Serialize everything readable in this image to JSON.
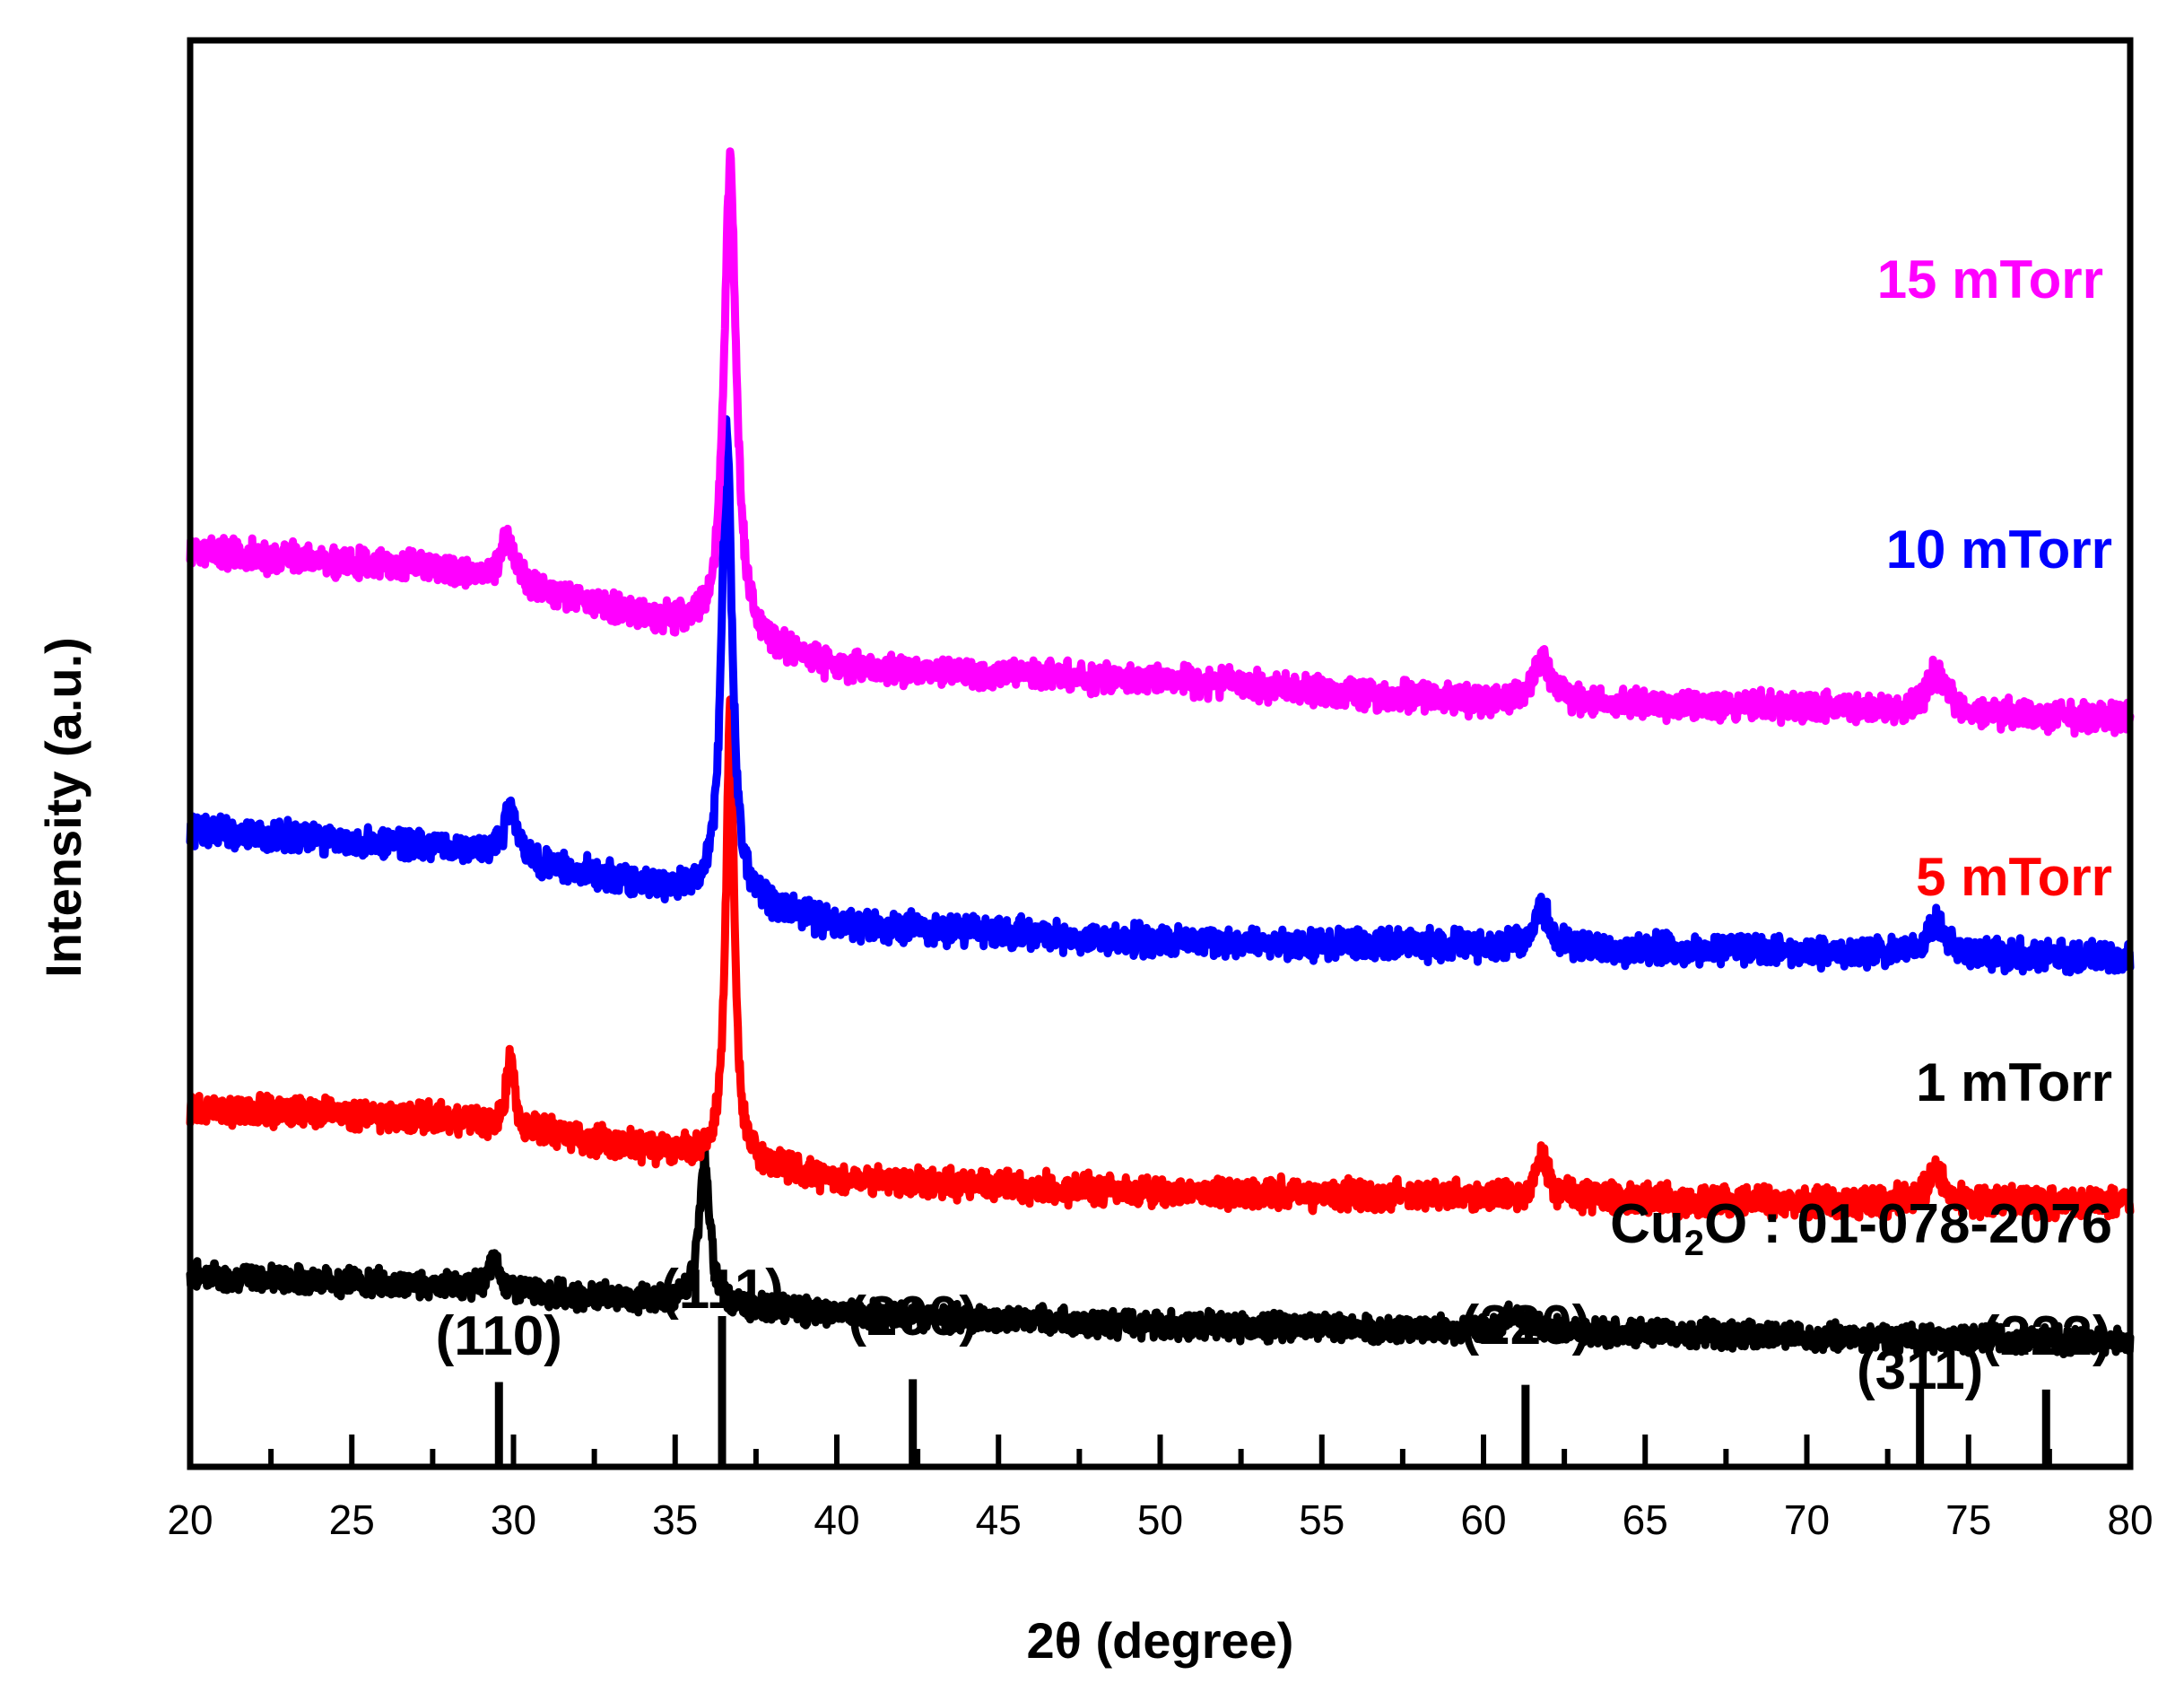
{
  "chart_data": {
    "type": "line",
    "title": "",
    "xlabel": "2θ (degree)",
    "ylabel": "Intensity (a.u.)",
    "xlim": [
      20,
      80
    ],
    "x_ticks": [
      20,
      25,
      30,
      35,
      40,
      45,
      50,
      55,
      60,
      65,
      70,
      75,
      80
    ],
    "y_ticks": [],
    "grid": false,
    "legend": "inline-right",
    "series": [
      {
        "name": "15 mTorr",
        "color": "#ff00ff",
        "baseline": [
          [
            20,
            17.5
          ],
          [
            28,
            17.2
          ],
          [
            35,
            16.2
          ],
          [
            40,
            15.4
          ],
          [
            50,
            15.2
          ],
          [
            60,
            14.8
          ],
          [
            70,
            14.7
          ],
          [
            80,
            14.5
          ]
        ],
        "peaks": [
          [
            29.8,
            0.8,
            0.5
          ],
          [
            36.7,
            8.5,
            0.45
          ],
          [
            61.8,
            0.8,
            0.7
          ],
          [
            74.0,
            0.7,
            0.7
          ]
        ],
        "noise": 0.4
      },
      {
        "name": "10 mTorr",
        "color": "#0000ff",
        "baseline": [
          [
            20,
            12.5
          ],
          [
            28,
            12.2
          ],
          [
            35,
            11.4
          ],
          [
            40,
            10.8
          ],
          [
            50,
            10.5
          ],
          [
            60,
            10.4
          ],
          [
            70,
            10.3
          ],
          [
            80,
            10.2
          ]
        ],
        "peaks": [
          [
            29.9,
            0.9,
            0.45
          ],
          [
            36.6,
            8.5,
            0.38
          ],
          [
            61.8,
            0.7,
            0.6
          ],
          [
            74.0,
            0.6,
            0.6
          ]
        ],
        "noise": 0.4
      },
      {
        "name": "5 mTorr",
        "color": "#ff0000",
        "baseline": [
          [
            20,
            7.5
          ],
          [
            28,
            7.3
          ],
          [
            35,
            6.7
          ],
          [
            40,
            6.2
          ],
          [
            50,
            6.0
          ],
          [
            60,
            5.9
          ],
          [
            70,
            5.8
          ],
          [
            80,
            5.8
          ]
        ],
        "peaks": [
          [
            29.9,
            1.2,
            0.3
          ],
          [
            36.7,
            8.2,
            0.3
          ],
          [
            61.8,
            0.7,
            0.5
          ],
          [
            74.0,
            0.6,
            0.6
          ]
        ],
        "noise": 0.4
      },
      {
        "name": "1 mTorr",
        "color": "#000000",
        "baseline": [
          [
            20,
            4.5
          ],
          [
            28,
            4.3
          ],
          [
            35,
            4.0
          ],
          [
            40,
            3.8
          ],
          [
            50,
            3.6
          ],
          [
            60,
            3.5
          ],
          [
            70,
            3.4
          ],
          [
            80,
            3.3
          ]
        ],
        "peaks": [
          [
            29.4,
            0.5,
            0.4
          ],
          [
            35.9,
            2.6,
            0.4
          ],
          [
            61.0,
            0.3,
            0.8
          ]
        ],
        "noise": 0.35
      }
    ],
    "reference": {
      "title_main": "Cu",
      "title_sub": "2",
      "title_rest": "O : 01-078-2076",
      "lines": [
        {
          "label": "(110)",
          "x": 29.55,
          "intensity": 0.3
        },
        {
          "label": "(111)",
          "x": 36.45,
          "intensity": 1.0
        },
        {
          "label": "(200)",
          "x": 42.35,
          "intensity": 0.33
        },
        {
          "label": "(220)",
          "x": 61.3,
          "intensity": 0.27
        },
        {
          "label": "(311)",
          "x": 73.5,
          "intensity": 0.23
        },
        {
          "label": "(222)",
          "x": 77.4,
          "intensity": 0.22
        }
      ]
    }
  }
}
